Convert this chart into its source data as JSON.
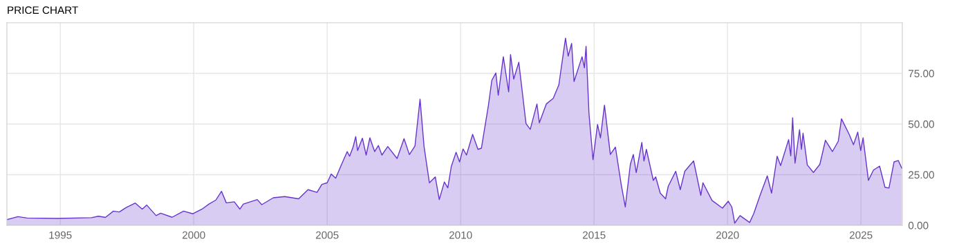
{
  "chart_data": {
    "type": "area",
    "title": "PRICE CHART",
    "x": [
      1993.0,
      1993.41,
      1993.76,
      1994.88,
      1996.17,
      1996.43,
      1996.69,
      1996.99,
      1997.21,
      1997.47,
      1997.81,
      1998.07,
      1998.24,
      1998.59,
      1998.76,
      1999.19,
      1999.62,
      1999.97,
      2000.31,
      2000.57,
      2000.83,
      2001.04,
      2001.22,
      2001.52,
      2001.73,
      2001.86,
      2002.38,
      2002.55,
      2002.98,
      2003.41,
      2003.93,
      2004.28,
      2004.62,
      2004.8,
      2005.0,
      2005.15,
      2005.32,
      2005.54,
      2005.75,
      2005.84,
      2005.97,
      2006.07,
      2006.14,
      2006.32,
      2006.46,
      2006.6,
      2006.78,
      2006.92,
      2007.05,
      2007.27,
      2007.62,
      2007.88,
      2008.08,
      2008.29,
      2008.48,
      2008.63,
      2008.83,
      2009.05,
      2009.2,
      2009.39,
      2009.52,
      2009.65,
      2009.83,
      2009.96,
      2010.09,
      2010.22,
      2010.45,
      2010.65,
      2010.78,
      2011.04,
      2011.17,
      2011.32,
      2011.41,
      2011.6,
      2011.8,
      2011.87,
      2011.99,
      2012.18,
      2012.32,
      2012.45,
      2012.61,
      2012.86,
      2012.95,
      2013.21,
      2013.47,
      2013.68,
      2013.93,
      2014.03,
      2014.16,
      2014.25,
      2014.55,
      2014.64,
      2014.7,
      2014.81,
      2014.96,
      2015.13,
      2015.24,
      2015.39,
      2015.61,
      2015.8,
      2016.02,
      2016.17,
      2016.36,
      2016.47,
      2016.58,
      2016.79,
      2016.87,
      2016.96,
      2017.22,
      2017.31,
      2017.48,
      2017.68,
      2017.78,
      2018.06,
      2018.23,
      2018.4,
      2018.73,
      2019.0,
      2019.08,
      2019.42,
      2019.81,
      2020.03,
      2020.16,
      2020.27,
      2020.47,
      2020.83,
      2020.98,
      2021.22,
      2021.49,
      2021.65,
      2021.86,
      2021.99,
      2022.29,
      2022.37,
      2022.44,
      2022.53,
      2022.7,
      2022.77,
      2022.83,
      2022.99,
      2023.22,
      2023.46,
      2023.67,
      2023.93,
      2024.15,
      2024.27,
      2024.56,
      2024.72,
      2024.88,
      2024.99,
      2025.08,
      2025.28,
      2025.47,
      2025.7,
      2025.9,
      2026.05,
      2026.24,
      2026.4,
      2026.53
    ],
    "series": [
      {
        "color": "#6633cc",
        "values": [
          2.8,
          4.3,
          3.6,
          3.4,
          3.8,
          4.5,
          3.9,
          7.0,
          6.6,
          8.8,
          11.0,
          8.0,
          10.0,
          4.8,
          6.0,
          4.0,
          7.0,
          5.7,
          8.0,
          10.5,
          12.5,
          16.8,
          11.1,
          11.6,
          8.0,
          10.5,
          12.7,
          10.2,
          13.6,
          14.2,
          13.1,
          17.6,
          16.3,
          20.2,
          21.0,
          25.3,
          23.3,
          30.1,
          36.4,
          34.1,
          38.6,
          43.8,
          36.9,
          43.0,
          34.7,
          43.2,
          36.4,
          39.4,
          34.7,
          38.9,
          33.0,
          42.8,
          34.9,
          39.2,
          62.3,
          38.9,
          21.0,
          23.9,
          12.7,
          21.4,
          18.5,
          29.0,
          36.1,
          31.3,
          37.7,
          34.7,
          44.9,
          37.5,
          38.1,
          59.1,
          71.6,
          75.2,
          64.2,
          83.2,
          65.9,
          84.3,
          72.2,
          80.5,
          64.8,
          50.2,
          47.4,
          59.9,
          50.6,
          59.9,
          62.7,
          69.3,
          92.4,
          83.5,
          89.8,
          71.0,
          83.2,
          77.8,
          88.4,
          55.1,
          32.4,
          49.8,
          43.2,
          59.3,
          35.0,
          38.6,
          19.9,
          9.1,
          30.1,
          35.0,
          26.1,
          40.9,
          31.8,
          37.5,
          22.2,
          23.9,
          15.9,
          13.1,
          19.3,
          26.7,
          17.6,
          26.7,
          31.8,
          14.8,
          21.0,
          12.3,
          8.5,
          11.9,
          9.1,
          1.1,
          4.8,
          1.4,
          5.7,
          14.8,
          24.4,
          15.9,
          34.1,
          29.5,
          42.3,
          34.3,
          53.1,
          30.7,
          47.2,
          37.5,
          45.5,
          29.8,
          26.1,
          30.1,
          42.0,
          36.4,
          41.5,
          52.6,
          44.9,
          39.8,
          46.0,
          36.9,
          43.2,
          22.2,
          27.3,
          29.2,
          18.8,
          18.4,
          31.3,
          32.0,
          28.2
        ]
      }
    ],
    "xlim": [
      1993.0,
      2026.55
    ],
    "xticks": [
      1995,
      2000,
      2005,
      2010,
      2015,
      2020,
      2025
    ],
    "ylim": [
      0,
      100
    ],
    "yticks": [
      {
        "value": 0,
        "label": "0.00"
      },
      {
        "value": 25,
        "label": "25.00"
      },
      {
        "value": 50,
        "label": "50.00"
      },
      {
        "value": 75,
        "label": "75.00"
      }
    ],
    "grid": true,
    "legend": false
  }
}
